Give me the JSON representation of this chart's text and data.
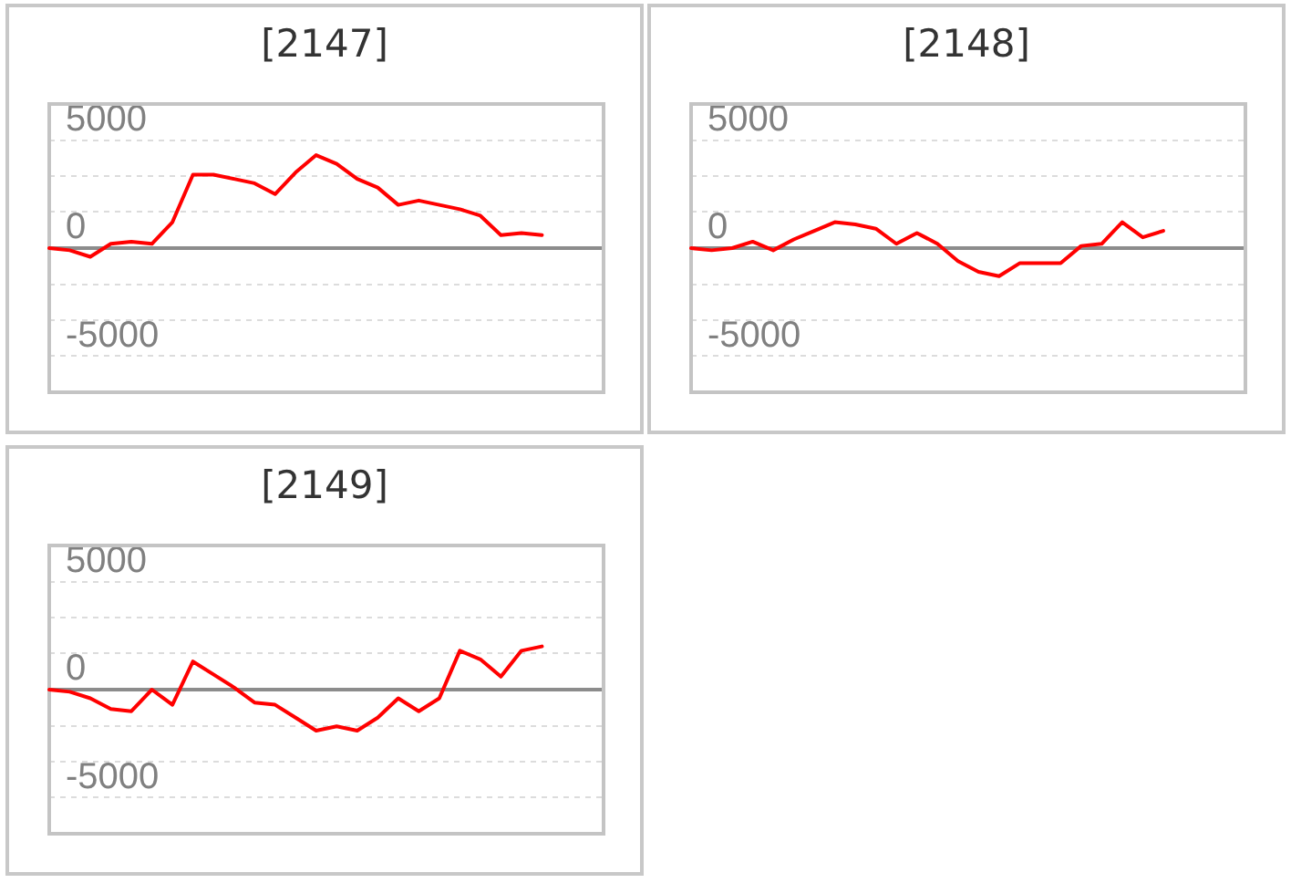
{
  "chart_data": [
    {
      "type": "line",
      "title": "[2147]",
      "categories": [
        null,
        null,
        null,
        null,
        null,
        null,
        null,
        null,
        null,
        null,
        null,
        null,
        null,
        null,
        null,
        null,
        null,
        null,
        null,
        null,
        null,
        null,
        null,
        null,
        null,
        null,
        null,
        null
      ],
      "values": [
        0,
        -100,
        -400,
        200,
        300,
        200,
        1200,
        3400,
        3400,
        3200,
        3000,
        2500,
        3500,
        4300,
        3900,
        3200,
        2800,
        2000,
        2200,
        2000,
        1800,
        1500,
        600,
        700,
        600,
        null,
        null,
        null
      ],
      "color": "#ff0000",
      "ylim": [
        -6667,
        6667
      ],
      "yticks": [
        -5000,
        {
          "value": -3333,
          "label": null
        },
        {
          "value": -1667,
          "label": null
        },
        0,
        {
          "value": 1667,
          "label": null
        },
        {
          "value": 3333,
          "label": null
        },
        5000
      ],
      "grid": "y",
      "tick_labels": "y",
      "marker": "none"
    },
    {
      "type": "line",
      "title": "[2148]",
      "categories": [
        null,
        null,
        null,
        null,
        null,
        null,
        null,
        null,
        null,
        null,
        null,
        null,
        null,
        null,
        null,
        null,
        null,
        null,
        null,
        null,
        null,
        null,
        null,
        null,
        null,
        null,
        null,
        null
      ],
      "values": [
        0,
        -100,
        0,
        300,
        -100,
        400,
        800,
        1200,
        1100,
        900,
        200,
        700,
        200,
        -600,
        -1100,
        -1300,
        -700,
        -700,
        -700,
        100,
        200,
        1200,
        500,
        800,
        null,
        null,
        null,
        null
      ],
      "color": "#ff0000",
      "ylim": [
        -6667,
        6667
      ],
      "yticks": [
        -5000,
        {
          "value": -3333,
          "label": null
        },
        {
          "value": -1667,
          "label": null
        },
        0,
        {
          "value": 1667,
          "label": null
        },
        {
          "value": 3333,
          "label": null
        },
        5000
      ],
      "grid": "y",
      "tick_labels": "y",
      "marker": "none"
    },
    {
      "type": "line",
      "title": "[2149]",
      "categories": [
        null,
        null,
        null,
        null,
        null,
        null,
        null,
        null,
        null,
        null,
        null,
        null,
        null,
        null,
        null,
        null,
        null,
        null,
        null,
        null,
        null,
        null,
        null,
        null,
        null,
        null,
        null,
        null
      ],
      "values": [
        0,
        -100,
        -400,
        -900,
        -1000,
        0,
        -700,
        1300,
        700,
        100,
        -600,
        -700,
        -1300,
        -1900,
        -1700,
        -1900,
        -1300,
        -400,
        -1000,
        -400,
        1800,
        1400,
        600,
        1800,
        2000,
        null,
        null,
        null
      ],
      "color": "#ff0000",
      "ylim": [
        -6667,
        6667
      ],
      "yticks": [
        -5000,
        {
          "value": -3333,
          "label": null
        },
        {
          "value": -1667,
          "label": null
        },
        0,
        {
          "value": 1667,
          "label": null
        },
        {
          "value": 3333,
          "label": null
        },
        5000
      ],
      "grid": "y",
      "tick_labels": "y",
      "marker": "none"
    }
  ]
}
